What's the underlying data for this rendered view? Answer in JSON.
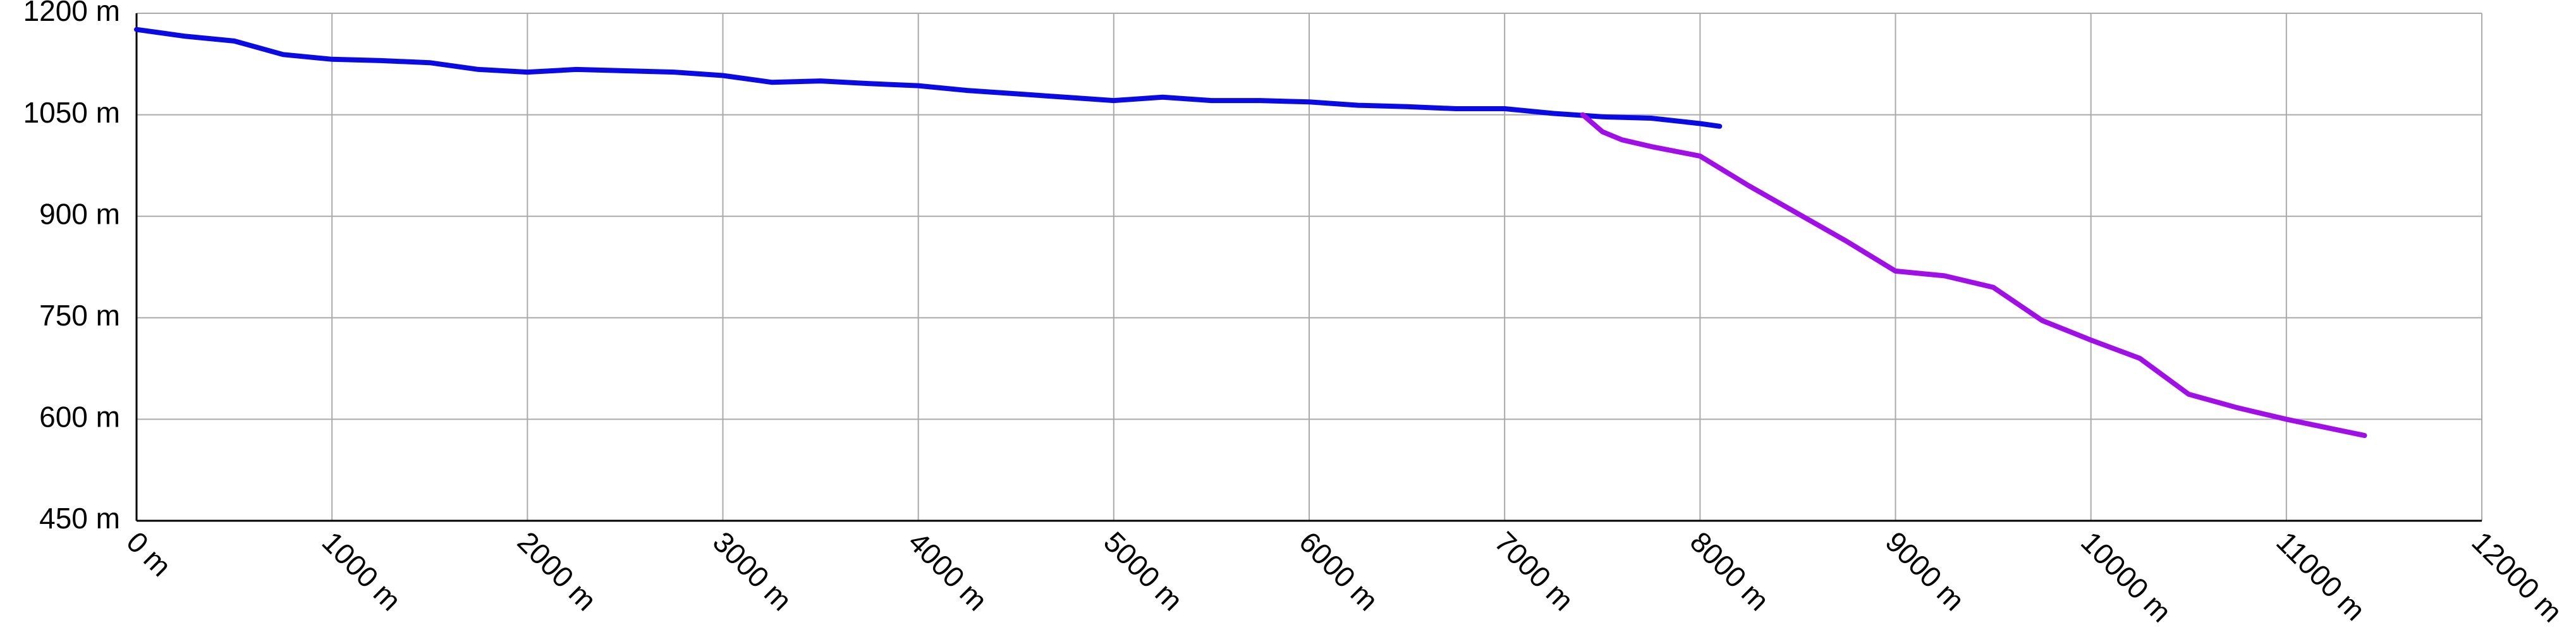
{
  "chart_data": {
    "type": "line",
    "xlim": [
      0,
      12000
    ],
    "ylim": [
      450,
      1200
    ],
    "xticks": [
      {
        "value": 0,
        "label": "0 m"
      },
      {
        "value": 1000,
        "label": "1000 m"
      },
      {
        "value": 2000,
        "label": "2000 m"
      },
      {
        "value": 3000,
        "label": "3000 m"
      },
      {
        "value": 4000,
        "label": "4000 m"
      },
      {
        "value": 5000,
        "label": "5000 m"
      },
      {
        "value": 6000,
        "label": "6000 m"
      },
      {
        "value": 7000,
        "label": "7000 m"
      },
      {
        "value": 8000,
        "label": "8000 m"
      },
      {
        "value": 9000,
        "label": "9000 m"
      },
      {
        "value": 10000,
        "label": "10000 m"
      },
      {
        "value": 11000,
        "label": "11000 m"
      },
      {
        "value": 12000,
        "label": "12000 m"
      }
    ],
    "yticks": [
      {
        "value": 450,
        "label": "450 m"
      },
      {
        "value": 600,
        "label": "600 m"
      },
      {
        "value": 750,
        "label": "750 m"
      },
      {
        "value": 900,
        "label": "900 m"
      },
      {
        "value": 1050,
        "label": "1050 m"
      },
      {
        "value": 1200,
        "label": "1200 m"
      }
    ],
    "grid": true,
    "series": [
      {
        "color": "#0a0ae6",
        "x": [
          0,
          250,
          500,
          750,
          1000,
          1250,
          1500,
          1750,
          2000,
          2250,
          2500,
          2750,
          3000,
          3250,
          3500,
          3750,
          4000,
          4250,
          4500,
          4750,
          5000,
          5250,
          5500,
          5750,
          6000,
          6250,
          6500,
          6750,
          7000,
          7250,
          7500,
          7750,
          8000,
          8100
        ],
        "values": [
          1176,
          1166,
          1159,
          1139,
          1132,
          1130,
          1127,
          1117,
          1113,
          1117,
          1115,
          1113,
          1108,
          1098,
          1100,
          1096,
          1093,
          1086,
          1081,
          1076,
          1071,
          1076,
          1071,
          1071,
          1069,
          1064,
          1062,
          1059,
          1059,
          1052,
          1047,
          1045,
          1037,
          1033
        ]
      },
      {
        "color": "#a10fe8",
        "x": [
          7400,
          7500,
          7600,
          7750,
          8000,
          8250,
          8500,
          8750,
          9000,
          9250,
          9500,
          9750,
          10000,
          10250,
          10500,
          10750,
          11000,
          11400
        ],
        "values": [
          1050,
          1025,
          1013,
          1003,
          989,
          945,
          904,
          863,
          819,
          812,
          795,
          746,
          717,
          690,
          637,
          617,
          600,
          576
        ]
      }
    ]
  }
}
